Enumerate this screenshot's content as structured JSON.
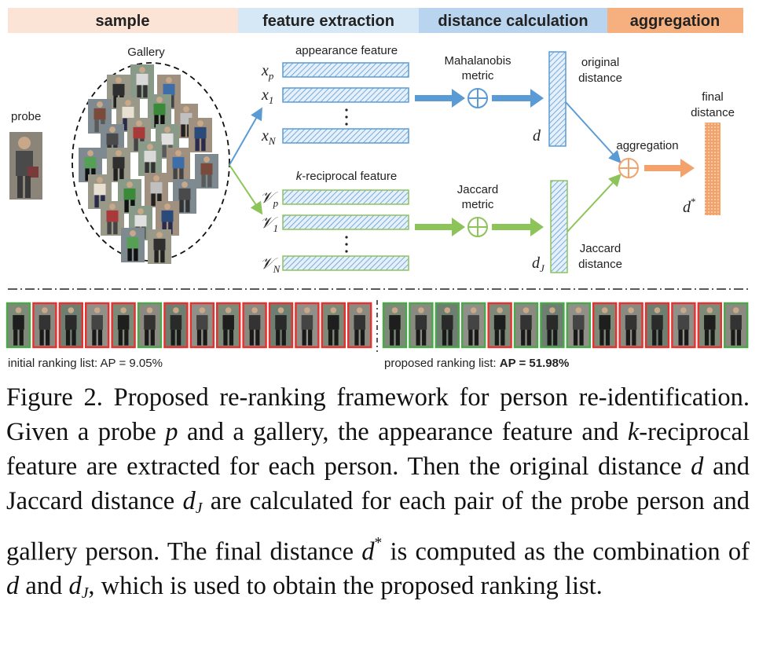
{
  "stages": [
    {
      "label": "sample",
      "color": "#fbe3d5"
    },
    {
      "label": "feature extraction",
      "color": "#d6e8f6"
    },
    {
      "label": "distance calculation",
      "color": "#b9d4ee"
    },
    {
      "label": "aggregation",
      "color": "#f6b07f"
    }
  ],
  "probe_label": "probe",
  "gallery_label": "Gallery",
  "appearance": {
    "title": "appearance feature",
    "rows": [
      "x",
      "x",
      "x"
    ],
    "subs": [
      "p",
      "1",
      "N"
    ]
  },
  "kreciprocal": {
    "title_k": "k",
    "title_rest": "-reciprocal feature",
    "rows": [
      "𝒱",
      "𝒱",
      "𝒱"
    ],
    "subs": [
      "p",
      "1",
      "N"
    ]
  },
  "mahalanobis": {
    "line1": "Mahalanobis",
    "line2": "metric"
  },
  "jaccard_metric": {
    "line1": "Jaccard",
    "line2": "metric"
  },
  "original_distance": {
    "line1": "original",
    "line2": "distance",
    "symbol": "d"
  },
  "jaccard_distance": {
    "line1": "Jaccard",
    "line2": "distance",
    "symbol": "d",
    "sub": "J"
  },
  "aggregation_label": "aggregation",
  "final_distance": {
    "line1": "final",
    "line2": "distance",
    "symbol": "d",
    "sup": "*"
  },
  "initial_list": {
    "text": "initial ranking list: AP = 9.05%",
    "borders": [
      "green",
      "red",
      "red",
      "red",
      "red",
      "green",
      "red",
      "red",
      "red",
      "red",
      "red",
      "red",
      "red",
      "red"
    ]
  },
  "proposed_list": {
    "text": "proposed ranking list: ",
    "ap": "AP = 51.98%",
    "borders": [
      "green",
      "green",
      "green",
      "green",
      "red",
      "green",
      "green",
      "green",
      "red",
      "red",
      "red",
      "red",
      "red",
      "green"
    ]
  },
  "colors": {
    "blue": "#5b9bd5",
    "green": "#8dc45a",
    "orange": "#f4a26b",
    "red": "#e8312f",
    "border_green": "#4aa84a"
  },
  "caption": {
    "label": "Figure 2.",
    "p1": " Proposed re-ranking framework for person re-identification. Given a probe ",
    "p": "p",
    "p2": " and a gallery, the appearance feature and ",
    "k": "k",
    "p3": "-reciprocal feature are extracted for each person. Then the original distance ",
    "d1": "d",
    "p4": " and Jaccard distance ",
    "dj": "d",
    "j": "J",
    "p5": " are calculated for each pair of the probe person and gallery person. The final distance ",
    "ds": "d",
    "star": "*",
    "p6": " is computed as the combination of ",
    "d2": "d",
    "p7": " and ",
    "dj2": "d",
    "j2": "J",
    "p8": ", which is used to obtain the proposed ranking list."
  }
}
